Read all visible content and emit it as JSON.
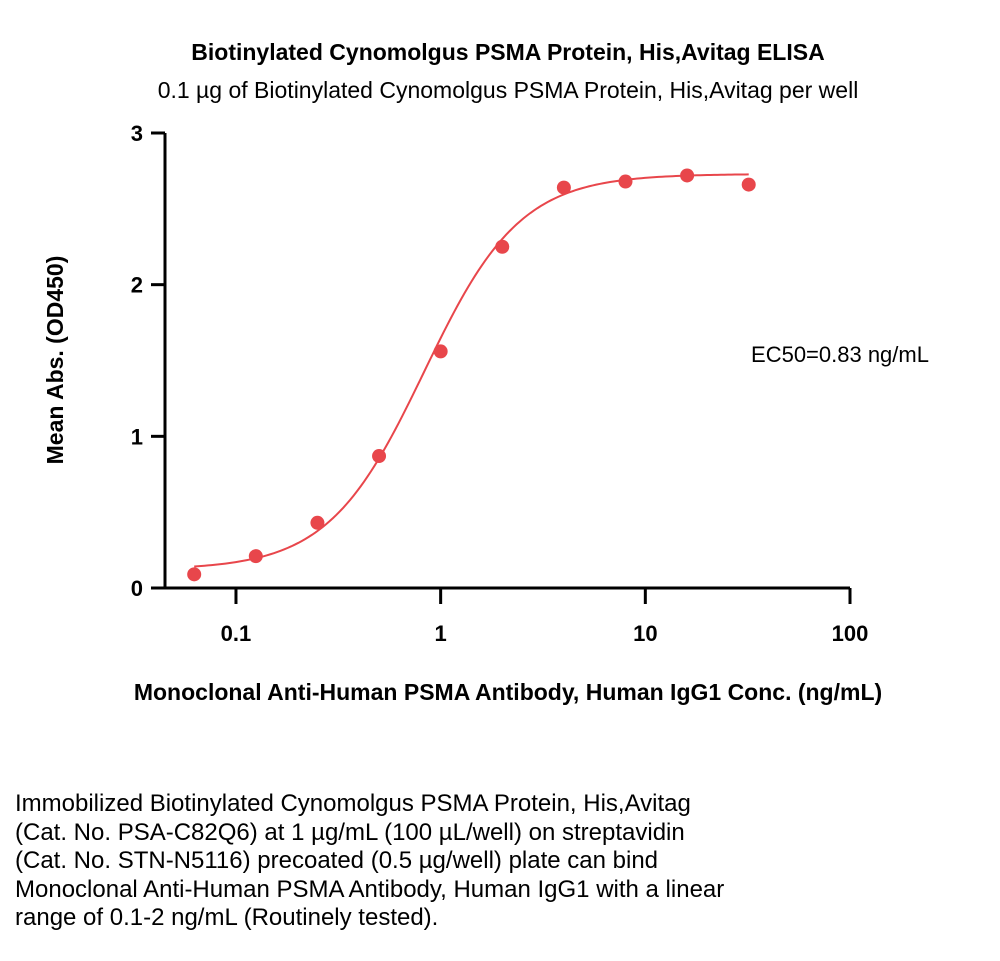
{
  "chart_data": {
    "type": "scatter",
    "title": "Biotinylated Cynomolgus PSMA Protein, His,Avitag ELISA",
    "subtitle": "0.1 µg of Biotinylated Cynomolgus PSMA Protein, His,Avitag per well",
    "xlabel": "Monoclonal Anti-Human PSMA Antibody, Human IgG1 Conc. (ng/mL)",
    "ylabel": "Mean Abs. (OD450)",
    "x_scale": "log",
    "xlim": [
      0.045,
      100
    ],
    "ylim": [
      0,
      3
    ],
    "x_ticks": [
      0.1,
      1,
      10,
      100
    ],
    "x_tick_labels": [
      "0.1",
      "1",
      "10",
      "100"
    ],
    "y_ticks": [
      0,
      1,
      2,
      3
    ],
    "y_tick_labels": [
      "0",
      "1",
      "2",
      "3"
    ],
    "grid": false,
    "legend": "none",
    "annotation": "EC50=0.83 ng/mL",
    "color": "#e8464b",
    "series": [
      {
        "x": [
          0.0625,
          0.125,
          0.25,
          0.5,
          1,
          2,
          4,
          8,
          16,
          32
        ],
        "y": [
          0.09,
          0.21,
          0.43,
          0.87,
          1.56,
          2.25,
          2.64,
          2.68,
          2.72,
          2.66
        ]
      }
    ],
    "fit": {
      "bottom": 0.12,
      "top": 2.73,
      "ec50": 0.83,
      "hill": 1.85
    }
  },
  "caption": {
    "lines": [
      "Immobilized Biotinylated Cynomolgus PSMA Protein, His,Avitag",
      "(Cat. No. PSA-C82Q6) at 1 µg/mL (100 µL/well) on streptavidin",
      "(Cat. No. STN-N5116) precoated (0.5 µg/well) plate can bind",
      "Monoclonal Anti-Human PSMA Antibody, Human IgG1 with a linear",
      "range of 0.1-2 ng/mL (Routinely tested)."
    ]
  }
}
